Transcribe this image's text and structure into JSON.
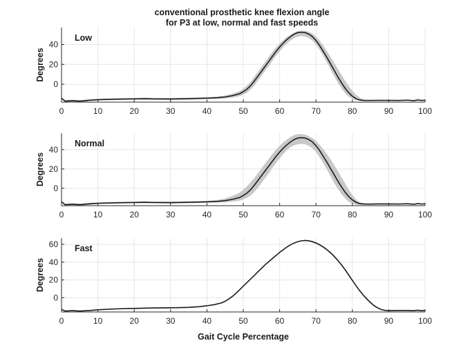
{
  "chart_data": {
    "type": "line",
    "title": [
      "conventional prosthetic knee flexion angle",
      "for P3 at low, normal and fast speeds"
    ],
    "xlabel": "Gait Cycle Percentage",
    "x_ticks": [
      0,
      10,
      20,
      30,
      40,
      50,
      60,
      70,
      80,
      90,
      100
    ],
    "xlim": [
      0,
      100
    ],
    "grid": true,
    "panels": [
      {
        "label": "Low",
        "ylabel": "Degrees",
        "ylim": [
          -18,
          57
        ],
        "y_ticks": [
          0,
          20,
          40
        ],
        "series": [
          {
            "x": [
              0,
              1,
              3,
              5,
              8,
              10,
              15,
              20,
              23,
              25,
              30,
              35,
              40,
              43,
              45,
              47,
              49,
              50,
              51,
              52,
              53,
              54,
              55,
              56,
              57,
              58,
              59,
              60,
              61,
              62,
              63,
              64,
              65,
              66,
              67,
              68,
              69,
              70,
              71,
              72,
              73,
              74,
              75,
              76,
              77,
              78,
              79,
              80,
              81,
              82,
              83,
              84,
              85,
              87,
              90,
              93,
              95,
              97,
              98,
              99,
              100
            ],
            "y": [
              -14,
              -17,
              -16.5,
              -17,
              -16,
              -15.5,
              -15,
              -14.7,
              -14.5,
              -14.7,
              -14.8,
              -14.5,
              -14,
              -13.5,
              -12.8,
              -11.5,
              -9.5,
              -7.5,
              -5,
              -1.5,
              3,
              8,
              13,
              18,
              23,
              28,
              33,
              37.5,
              41.5,
              45,
              48,
              50.5,
              52,
              52.4,
              52,
              50.5,
              48,
              44,
              39,
              33,
              27,
              20.5,
              14,
              7.5,
              1.5,
              -4,
              -8.5,
              -12,
              -14.5,
              -15.8,
              -16.2,
              -16.3,
              -16.3,
              -16.2,
              -16.2,
              -16.3,
              -16,
              -16.5,
              -15.8,
              -16.3,
              -16
            ],
            "upper": [
              -13.5,
              -16,
              -15.5,
              -16,
              -15,
              -14.7,
              -14.2,
              -13.8,
              -13.5,
              -13.7,
              -13.8,
              -13.5,
              -13,
              -12.3,
              -11.2,
              -9.5,
              -7,
              -4.5,
              -1.5,
              2.5,
              7.5,
              12.5,
              17.5,
              22.5,
              27.5,
              32.5,
              37,
              41,
              44.5,
              47.5,
              50,
              52,
              53.5,
              54,
              53.8,
              52.8,
              51,
              48,
              44,
              39,
              33.5,
              27.5,
              21.5,
              15.5,
              9.5,
              3.5,
              -2,
              -6.5,
              -10.5,
              -13.5,
              -15.2,
              -15.8,
              -16,
              -15.8,
              -15.8,
              -15.8,
              -15.5,
              -16,
              -15.3,
              -15.8,
              -15.5
            ],
            "lower": [
              -14.5,
              -18,
              -17.5,
              -18,
              -17,
              -16.3,
              -15.8,
              -15.6,
              -15.5,
              -15.7,
              -15.8,
              -15.5,
              -15,
              -14.7,
              -14.3,
              -13.4,
              -12,
              -10.5,
              -8.5,
              -5.5,
              -1.5,
              3.5,
              8.5,
              13.5,
              18.5,
              23.5,
              28.5,
              33,
              37.5,
              41,
              44,
              46.5,
              48,
              48.5,
              48,
              46.5,
              44,
              40,
              34.5,
              28.5,
              22,
              15,
              8,
              1.5,
              -4,
              -9,
              -12.5,
              -14.8,
              -16,
              -16.6,
              -16.8,
              -16.8,
              -16.8,
              -16.6,
              -16.6,
              -16.8,
              -16.5,
              -17,
              -16.3,
              -16.8,
              -16.5
            ]
          }
        ]
      },
      {
        "label": "Normal",
        "ylabel": "Degrees",
        "ylim": [
          -18,
          57
        ],
        "y_ticks": [
          0,
          20,
          40
        ],
        "series": [
          {
            "x": [
              0,
              1,
              3,
              5,
              8,
              10,
              15,
              20,
              23,
              25,
              30,
              35,
              40,
              43,
              45,
              47,
              49,
              50,
              51,
              52,
              53,
              54,
              55,
              56,
              57,
              58,
              59,
              60,
              61,
              62,
              63,
              64,
              65,
              66,
              67,
              68,
              69,
              70,
              71,
              72,
              73,
              74,
              75,
              76,
              77,
              78,
              79,
              80,
              81,
              82,
              83,
              84,
              85,
              87,
              90,
              93,
              95,
              97,
              98,
              99,
              100
            ],
            "y": [
              -14,
              -17,
              -16.5,
              -17,
              -16,
              -15.5,
              -15,
              -14.7,
              -14.5,
              -14.7,
              -14.8,
              -14.5,
              -14,
              -13.5,
              -12.8,
              -11.5,
              -9.5,
              -7.5,
              -5,
              -1.5,
              3,
              8,
              13,
              18,
              23,
              28,
              33,
              37.5,
              41.5,
              45,
              48,
              50.5,
              52,
              52.4,
              52,
              50.5,
              48,
              44,
              39,
              33,
              27,
              20.5,
              14,
              7.5,
              1.5,
              -4,
              -8.5,
              -12,
              -14.5,
              -15.8,
              -16.2,
              -16.3,
              -16.3,
              -16.2,
              -16.2,
              -16.3,
              -16,
              -16.5,
              -15.8,
              -16.3,
              -16
            ],
            "upper": [
              -13.5,
              -16,
              -15.5,
              -16,
              -15,
              -14.7,
              -14.2,
              -13.8,
              -13.5,
              -13.7,
              -13.8,
              -13.5,
              -13,
              -12,
              -10.5,
              -8,
              -4.5,
              -1.5,
              2,
              6,
              10.5,
              15.5,
              20.5,
              25.5,
              30.5,
              35.5,
              40,
              44,
              47.5,
              50.5,
              53,
              55,
              56,
              56.2,
              55.5,
              54,
              52,
              49,
              45,
              40.5,
              35.5,
              30,
              24,
              18,
              11.5,
              5,
              -1.5,
              -7,
              -11.5,
              -14.5,
              -15.5,
              -16,
              -16,
              -15.8,
              -15.8,
              -15.8,
              -15.5,
              -16,
              -15.3,
              -15.8,
              -15.5
            ],
            "lower": [
              -14.5,
              -18,
              -17.5,
              -18,
              -17,
              -16.3,
              -15.8,
              -15.6,
              -15.5,
              -15.7,
              -15.8,
              -15.5,
              -15,
              -14.8,
              -14.5,
              -13.8,
              -12.8,
              -11.5,
              -10,
              -7.5,
              -4,
              0.5,
              5.5,
              10.5,
              15.5,
              21,
              26,
              31,
              35.5,
              39.5,
              42.5,
              44.5,
              45.5,
              46,
              45.5,
              44,
              41.5,
              37.5,
              32,
              26,
              19.5,
              12.5,
              5.5,
              -0.5,
              -6,
              -10.5,
              -14,
              -16,
              -16.8,
              -17.2,
              -17.3,
              -17.3,
              -17.3,
              -17,
              -16.8,
              -16.8,
              -16.5,
              -17,
              -16.3,
              -16.8,
              -16.5
            ]
          }
        ]
      },
      {
        "label": "Fast",
        "ylabel": "Degrees",
        "ylim": [
          -16,
          67
        ],
        "y_ticks": [
          0,
          20,
          40,
          60
        ],
        "series": [
          {
            "x": [
              0,
              1,
              3,
              5,
              8,
              10,
              15,
              20,
              25,
              30,
              35,
              38,
              40,
              42,
              44,
              45,
              46,
              47,
              48,
              49,
              50,
              51,
              52,
              53,
              54,
              55,
              56,
              57,
              58,
              59,
              60,
              61,
              62,
              63,
              64,
              65,
              66,
              67,
              68,
              69,
              70,
              71,
              72,
              73,
              74,
              75,
              76,
              77,
              78,
              79,
              80,
              81,
              82,
              83,
              84,
              85,
              86,
              87,
              88,
              89,
              90,
              92,
              95,
              97,
              98,
              99,
              100
            ],
            "y": [
              -13,
              -15,
              -14.5,
              -15,
              -14.3,
              -13.5,
              -12.5,
              -12,
              -11.5,
              -11.3,
              -10.8,
              -10,
              -9,
              -7.8,
              -5.8,
              -4,
              -1.5,
              1.5,
              5,
              9,
              13,
              17,
              21,
              25,
              29,
              33,
              37,
              40.5,
              44,
              47.5,
              51,
              54,
              57,
              59.5,
              61.5,
              63,
              64,
              64.3,
              64,
              63,
              61.5,
              59.5,
              57,
              54,
              50.5,
              46.5,
              42,
              37,
              31.5,
              25.5,
              19.5,
              13.5,
              8,
              3,
              -1.5,
              -5.5,
              -9,
              -11.5,
              -13.3,
              -14.2,
              -14.5,
              -14.3,
              -14.3,
              -14.5,
              -14,
              -14.6,
              -14.2
            ],
            "upper": [
              -12.5,
              -14.5,
              -14,
              -14.5,
              -13.8,
              -13,
              -12,
              -11.5,
              -11,
              -10.8,
              -10.3,
              -9.5,
              -8.5,
              -7.3,
              -5.3,
              -3.5,
              -1,
              2,
              5.5,
              9.5,
              13.5,
              17.5,
              21.5,
              25.5,
              29.5,
              33.5,
              37.5,
              41,
              44.5,
              48,
              51.5,
              54.5,
              57.5,
              60,
              62,
              63.5,
              64.5,
              65,
              64.8,
              64,
              62.5,
              60.5,
              58,
              55,
              51.5,
              47.5,
              43,
              38,
              32.5,
              26.5,
              20.5,
              14.5,
              9,
              4,
              -0.5,
              -4.5,
              -8,
              -10.8,
              -12.8,
              -13.8,
              -14,
              -13.8,
              -13.8,
              -14,
              -13.5,
              -14.1,
              -13.7
            ],
            "lower": [
              -13.5,
              -15.5,
              -15,
              -15.5,
              -14.8,
              -14,
              -13,
              -12.5,
              -12,
              -11.8,
              -11.3,
              -10.5,
              -9.5,
              -8.3,
              -6.3,
              -4.5,
              -2,
              1,
              4.5,
              8.5,
              12.5,
              16.5,
              20.5,
              24.5,
              28.5,
              32.5,
              36.5,
              40,
              43.5,
              47,
              50.5,
              53.5,
              56.5,
              59,
              61,
              62.5,
              63.5,
              63.6,
              63.2,
              62,
              60.5,
              58.5,
              56,
              53,
              49.5,
              45.5,
              41,
              36,
              30.5,
              24.5,
              18.5,
              12.5,
              7,
              2,
              -2.5,
              -6.5,
              -10,
              -12.2,
              -13.8,
              -14.6,
              -15,
              -14.8,
              -14.8,
              -15,
              -14.5,
              -15.1,
              -14.7
            ]
          }
        ]
      }
    ]
  }
}
